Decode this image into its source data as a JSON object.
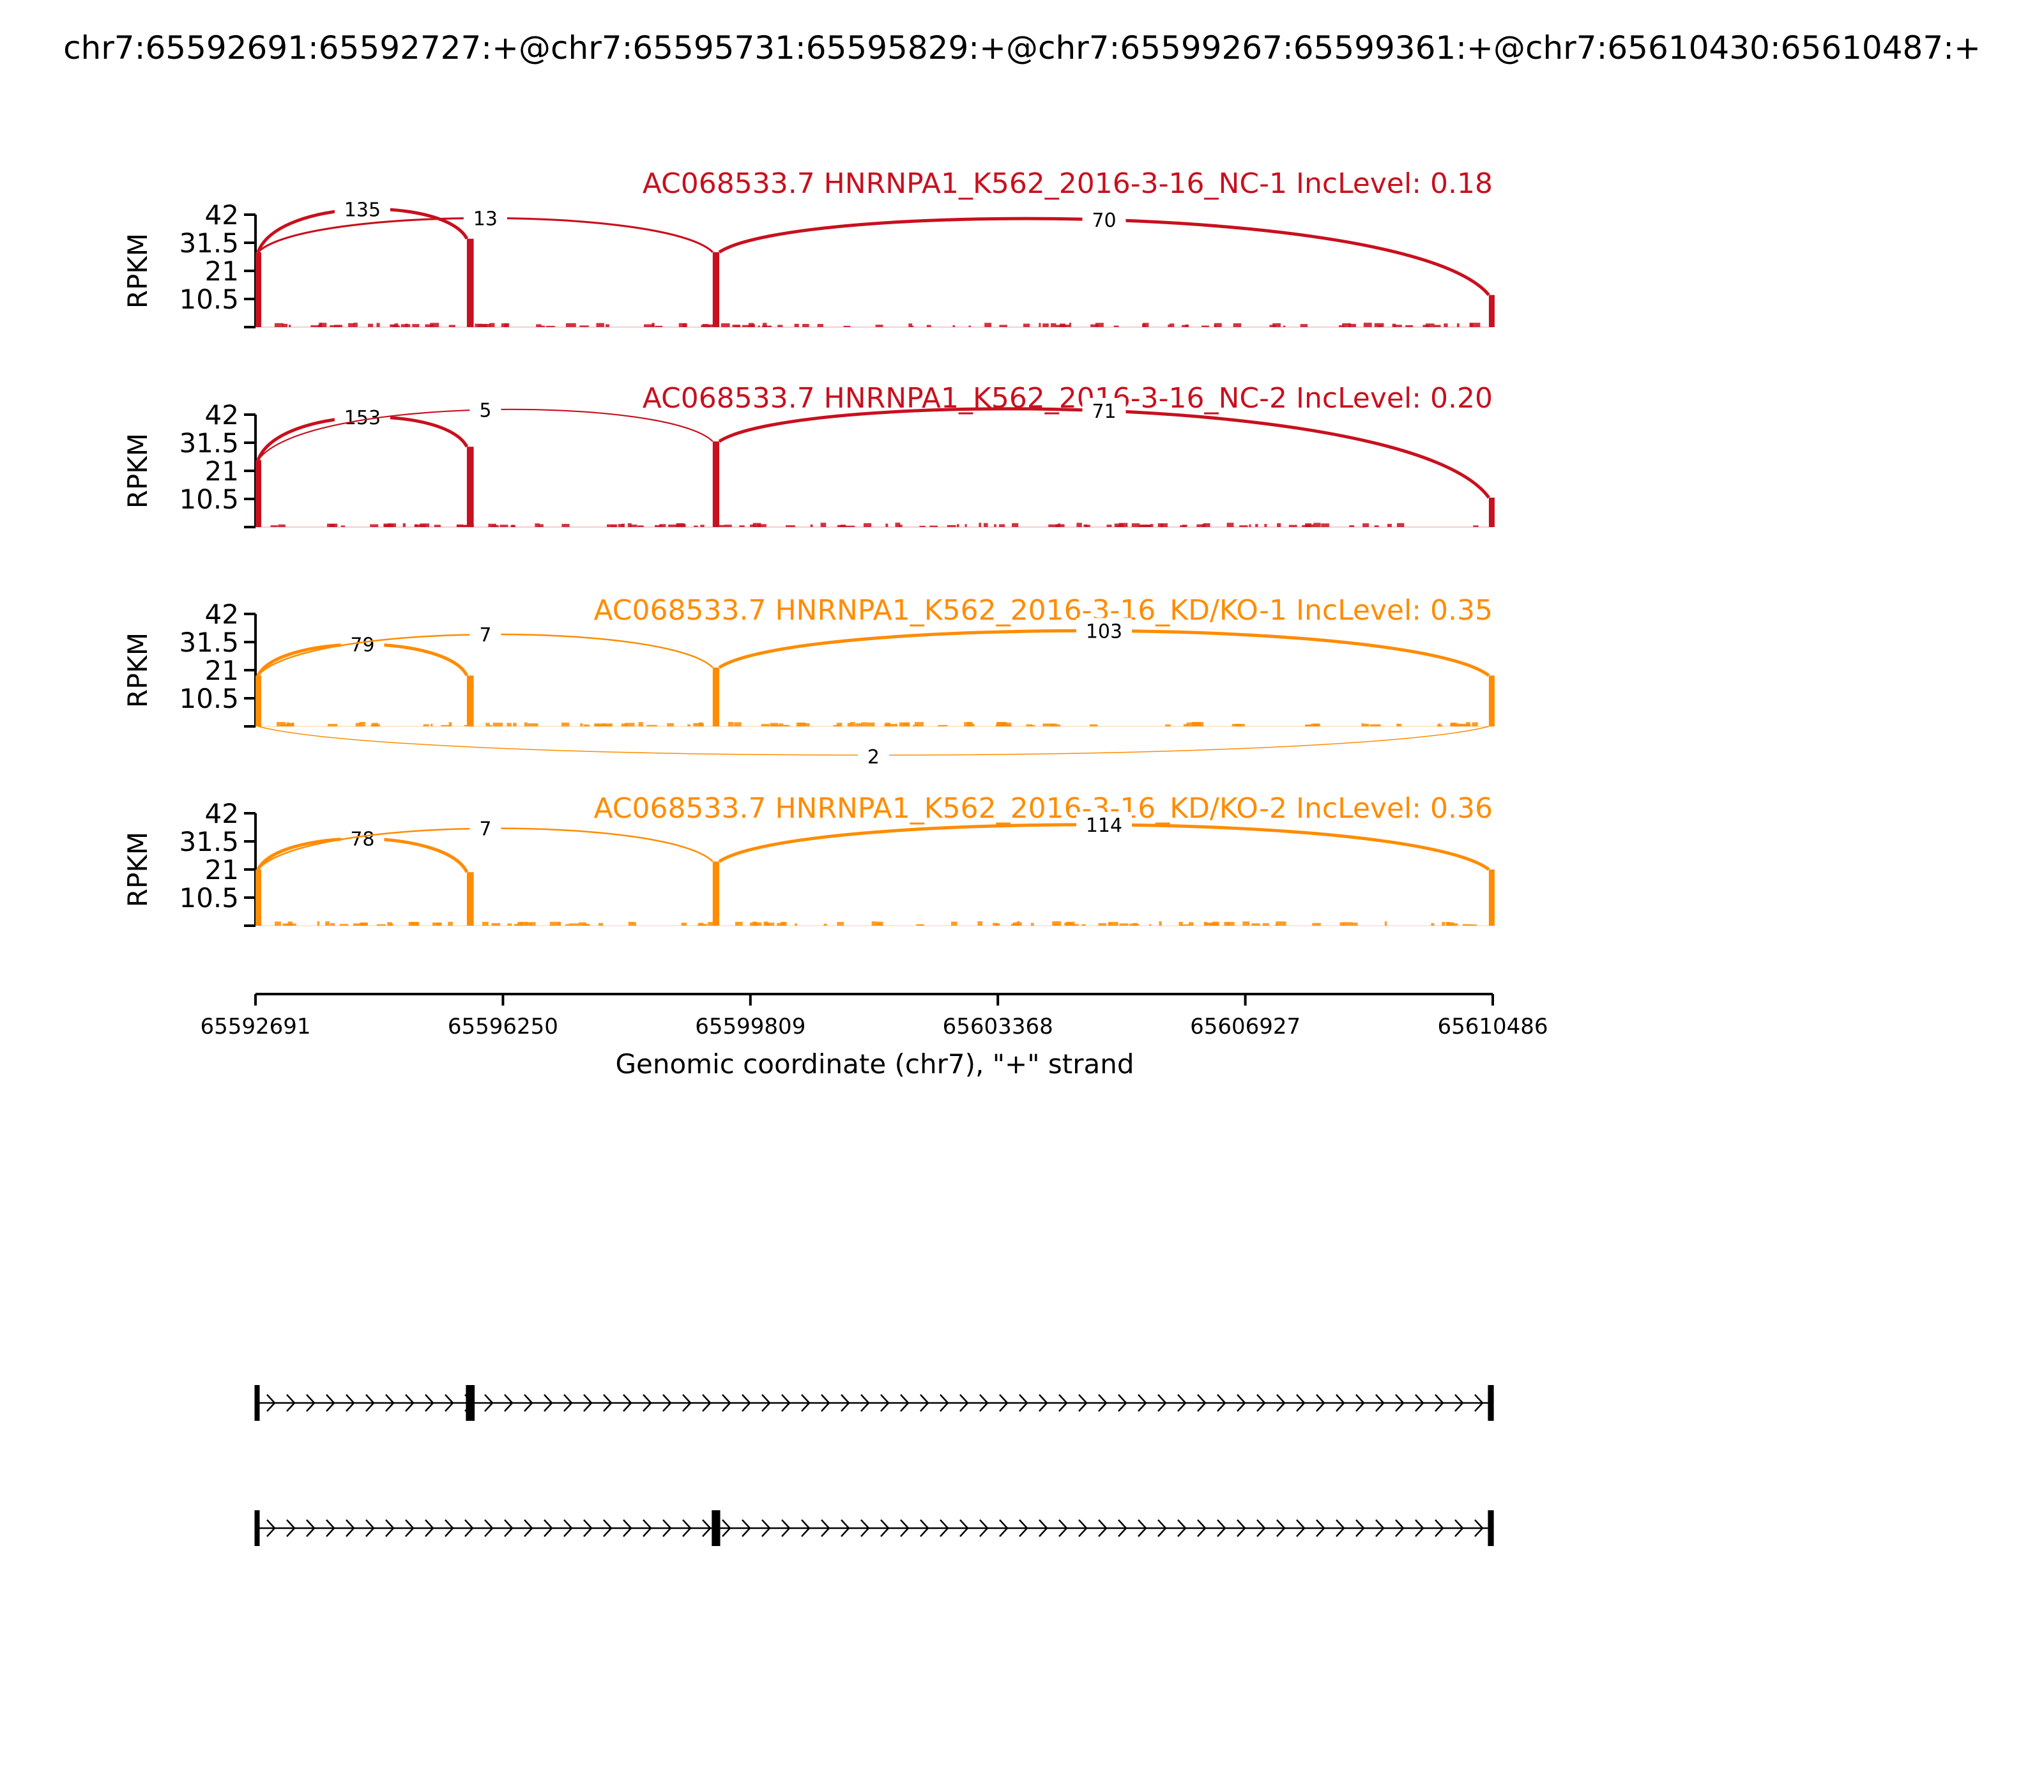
{
  "title": "chr7:65592691:65592727:+@chr7:65595731:65595829:+@chr7:65599267:65599361:+@chr7:65610430:65610487:+",
  "colors": {
    "nc": "#c8101e",
    "kd": "#ff8c00",
    "axis": "#000000"
  },
  "chart_data": {
    "type": "sashimi",
    "ylabel": "RPKM",
    "y_ticks": [
      "42",
      "31.5",
      "21",
      "10.5"
    ],
    "ylim": [
      0,
      42
    ],
    "xlabel": "Genomic coordinate (chr7), \"+\" strand",
    "xlim": [
      65592691,
      65610486
    ],
    "x_ticks": [
      "65592691",
      "65596250",
      "65599809",
      "65603368",
      "65606927",
      "65610486"
    ],
    "exons": [
      {
        "start": 65592691,
        "end": 65592727
      },
      {
        "start": 65595731,
        "end": 65595829
      },
      {
        "start": 65599267,
        "end": 65599361
      },
      {
        "start": 65610430,
        "end": 65610487
      }
    ],
    "tracks": [
      {
        "label": "AC068533.7 HNRNPA1_K562_2016-3-16_NC-1 IncLevel: 0.18",
        "group": "nc",
        "peaks": [
          28,
          33,
          28,
          12
        ],
        "junctions": [
          {
            "from": 65592727,
            "to": 65595731,
            "count": "135",
            "side": "above"
          },
          {
            "from": 65592727,
            "to": 65599267,
            "count": "13",
            "side": "above"
          },
          {
            "from": 65599361,
            "to": 65610430,
            "count": "70",
            "side": "above"
          }
        ]
      },
      {
        "label": "AC068533.7 HNRNPA1_K562_2016-3-16_NC-2 IncLevel: 0.20",
        "group": "nc",
        "peaks": [
          25,
          30,
          32,
          11
        ],
        "junctions": [
          {
            "from": 65592727,
            "to": 65595731,
            "count": "153",
            "side": "above"
          },
          {
            "from": 65592727,
            "to": 65599267,
            "count": "5",
            "side": "above"
          },
          {
            "from": 65599361,
            "to": 65610430,
            "count": "71",
            "side": "above"
          }
        ]
      },
      {
        "label": "AC068533.7 HNRNPA1_K562_2016-3-16_KD/KO-1 IncLevel: 0.35",
        "group": "kd",
        "peaks": [
          19,
          19,
          22,
          19
        ],
        "junctions": [
          {
            "from": 65592727,
            "to": 65595731,
            "count": "79",
            "side": "above"
          },
          {
            "from": 65592727,
            "to": 65599267,
            "count": "7",
            "side": "above"
          },
          {
            "from": 65599361,
            "to": 65610430,
            "count": "103",
            "side": "above"
          },
          {
            "from": 65592727,
            "to": 65610430,
            "count": "2",
            "side": "below"
          }
        ]
      },
      {
        "label": "AC068533.7 HNRNPA1_K562_2016-3-16_KD/KO-2 IncLevel: 0.36",
        "group": "kd",
        "peaks": [
          21,
          20,
          24,
          21
        ],
        "junctions": [
          {
            "from": 65592727,
            "to": 65595731,
            "count": "78",
            "side": "above"
          },
          {
            "from": 65592727,
            "to": 65599267,
            "count": "7",
            "side": "above"
          },
          {
            "from": 65599361,
            "to": 65610430,
            "count": "114",
            "side": "above"
          }
        ]
      }
    ],
    "isoforms": [
      {
        "exons": [
          0,
          1,
          3
        ]
      },
      {
        "exons": [
          0,
          2,
          3
        ]
      }
    ]
  }
}
